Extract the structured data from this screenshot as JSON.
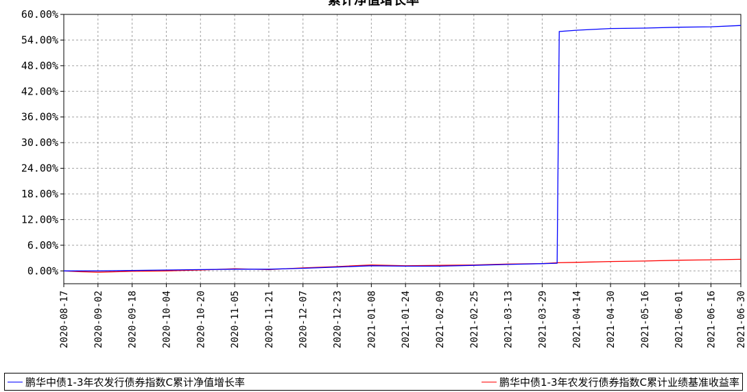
{
  "chart_data": {
    "type": "line",
    "title": "累计净值增长率",
    "xlabel": "",
    "ylabel": "",
    "ylim": [
      -3,
      60
    ],
    "yticks": [
      "60.00%",
      "54.00%",
      "48.00%",
      "42.00%",
      "36.00%",
      "30.00%",
      "24.00%",
      "18.00%",
      "12.00%",
      "6.00%",
      "0.00%"
    ],
    "ytick_values": [
      60,
      54,
      48,
      42,
      36,
      30,
      24,
      18,
      12,
      6,
      0
    ],
    "xlim": [
      "2020-08-17",
      "2021-06-30"
    ],
    "xticks": [
      "2020-08-17",
      "2020-09-02",
      "2020-09-18",
      "2020-10-04",
      "2020-10-20",
      "2020-11-05",
      "2020-11-21",
      "2020-12-07",
      "2020-12-23",
      "2021-01-08",
      "2021-01-24",
      "2021-02-09",
      "2021-02-25",
      "2021-03-13",
      "2021-03-29",
      "2021-04-14",
      "2021-04-30",
      "2021-05-16",
      "2021-06-01",
      "2021-06-16",
      "2021-06-30"
    ],
    "grid": true,
    "legend_position": "bottom",
    "series": [
      {
        "name": "鹏华中债1-3年农发行债券指数C累计净值增长率",
        "color": "#0000ff",
        "x": [
          "2020-08-17",
          "2020-08-25",
          "2020-09-02",
          "2020-09-18",
          "2020-10-04",
          "2020-10-20",
          "2020-11-05",
          "2020-11-21",
          "2020-12-07",
          "2020-12-23",
          "2021-01-08",
          "2021-01-24",
          "2021-02-09",
          "2021-02-25",
          "2021-03-13",
          "2021-03-29",
          "2021-04-05",
          "2021-04-06",
          "2021-04-14",
          "2021-04-30",
          "2021-05-16",
          "2021-06-01",
          "2021-06-16",
          "2021-06-30"
        ],
        "y": [
          0.0,
          0.0,
          0.0,
          0.1,
          0.2,
          0.3,
          0.4,
          0.4,
          0.6,
          0.9,
          1.2,
          1.1,
          1.1,
          1.3,
          1.5,
          1.7,
          1.8,
          56.0,
          56.3,
          56.7,
          56.8,
          57.0,
          57.1,
          57.4
        ]
      },
      {
        "name": "鹏华中债1-3年农发行债券指数C累计业绩基准收益率",
        "color": "#ff0000",
        "x": [
          "2020-08-17",
          "2020-08-25",
          "2020-09-02",
          "2020-09-18",
          "2020-10-04",
          "2020-10-20",
          "2020-11-05",
          "2020-11-21",
          "2020-12-07",
          "2020-12-23",
          "2021-01-08",
          "2021-01-24",
          "2021-02-09",
          "2021-02-25",
          "2021-03-13",
          "2021-03-29",
          "2021-04-05",
          "2021-04-14",
          "2021-04-30",
          "2021-05-16",
          "2021-06-01",
          "2021-06-16",
          "2021-06-30"
        ],
        "y": [
          0.0,
          -0.2,
          -0.3,
          -0.1,
          0.0,
          0.2,
          0.5,
          0.3,
          0.7,
          1.0,
          1.4,
          1.2,
          1.3,
          1.4,
          1.6,
          1.7,
          1.9,
          2.0,
          2.2,
          2.3,
          2.5,
          2.6,
          2.7
        ]
      }
    ]
  }
}
